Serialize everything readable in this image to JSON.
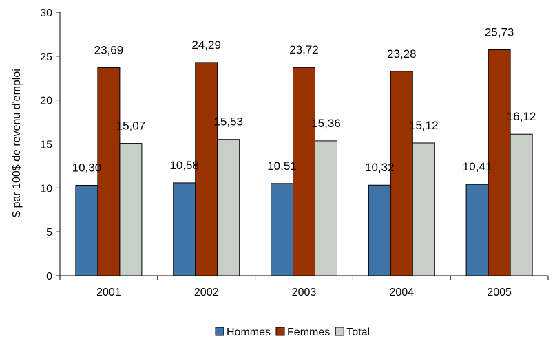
{
  "chart_data": {
    "type": "bar",
    "title": "",
    "xlabel": "",
    "ylabel": "$ par 100$ de revenu d'emploi",
    "categories": [
      "2001",
      "2002",
      "2003",
      "2004",
      "2005"
    ],
    "series": [
      {
        "name": "Hommes",
        "values": [
          10.3,
          10.58,
          10.51,
          10.32,
          10.41
        ],
        "labels": [
          "10,30",
          "10,58",
          "10,51",
          "10,32",
          "10,41"
        ],
        "color": "#3E74A8"
      },
      {
        "name": "Femmes",
        "values": [
          23.69,
          24.29,
          23.72,
          23.28,
          25.73
        ],
        "labels": [
          "23,69",
          "24,29",
          "23,72",
          "23,28",
          "25,73"
        ],
        "color": "#9A3200"
      },
      {
        "name": "Total",
        "values": [
          15.07,
          15.53,
          15.36,
          15.12,
          16.12
        ],
        "labels": [
          "15,07",
          "15,53",
          "15,36",
          "15,12",
          "16,12"
        ],
        "color": "#C6D0C6"
      }
    ],
    "ylim": [
      0,
      30
    ],
    "yticks": [
      0,
      5,
      10,
      15,
      20,
      25,
      30
    ],
    "grid": false,
    "legend": "bottom"
  }
}
